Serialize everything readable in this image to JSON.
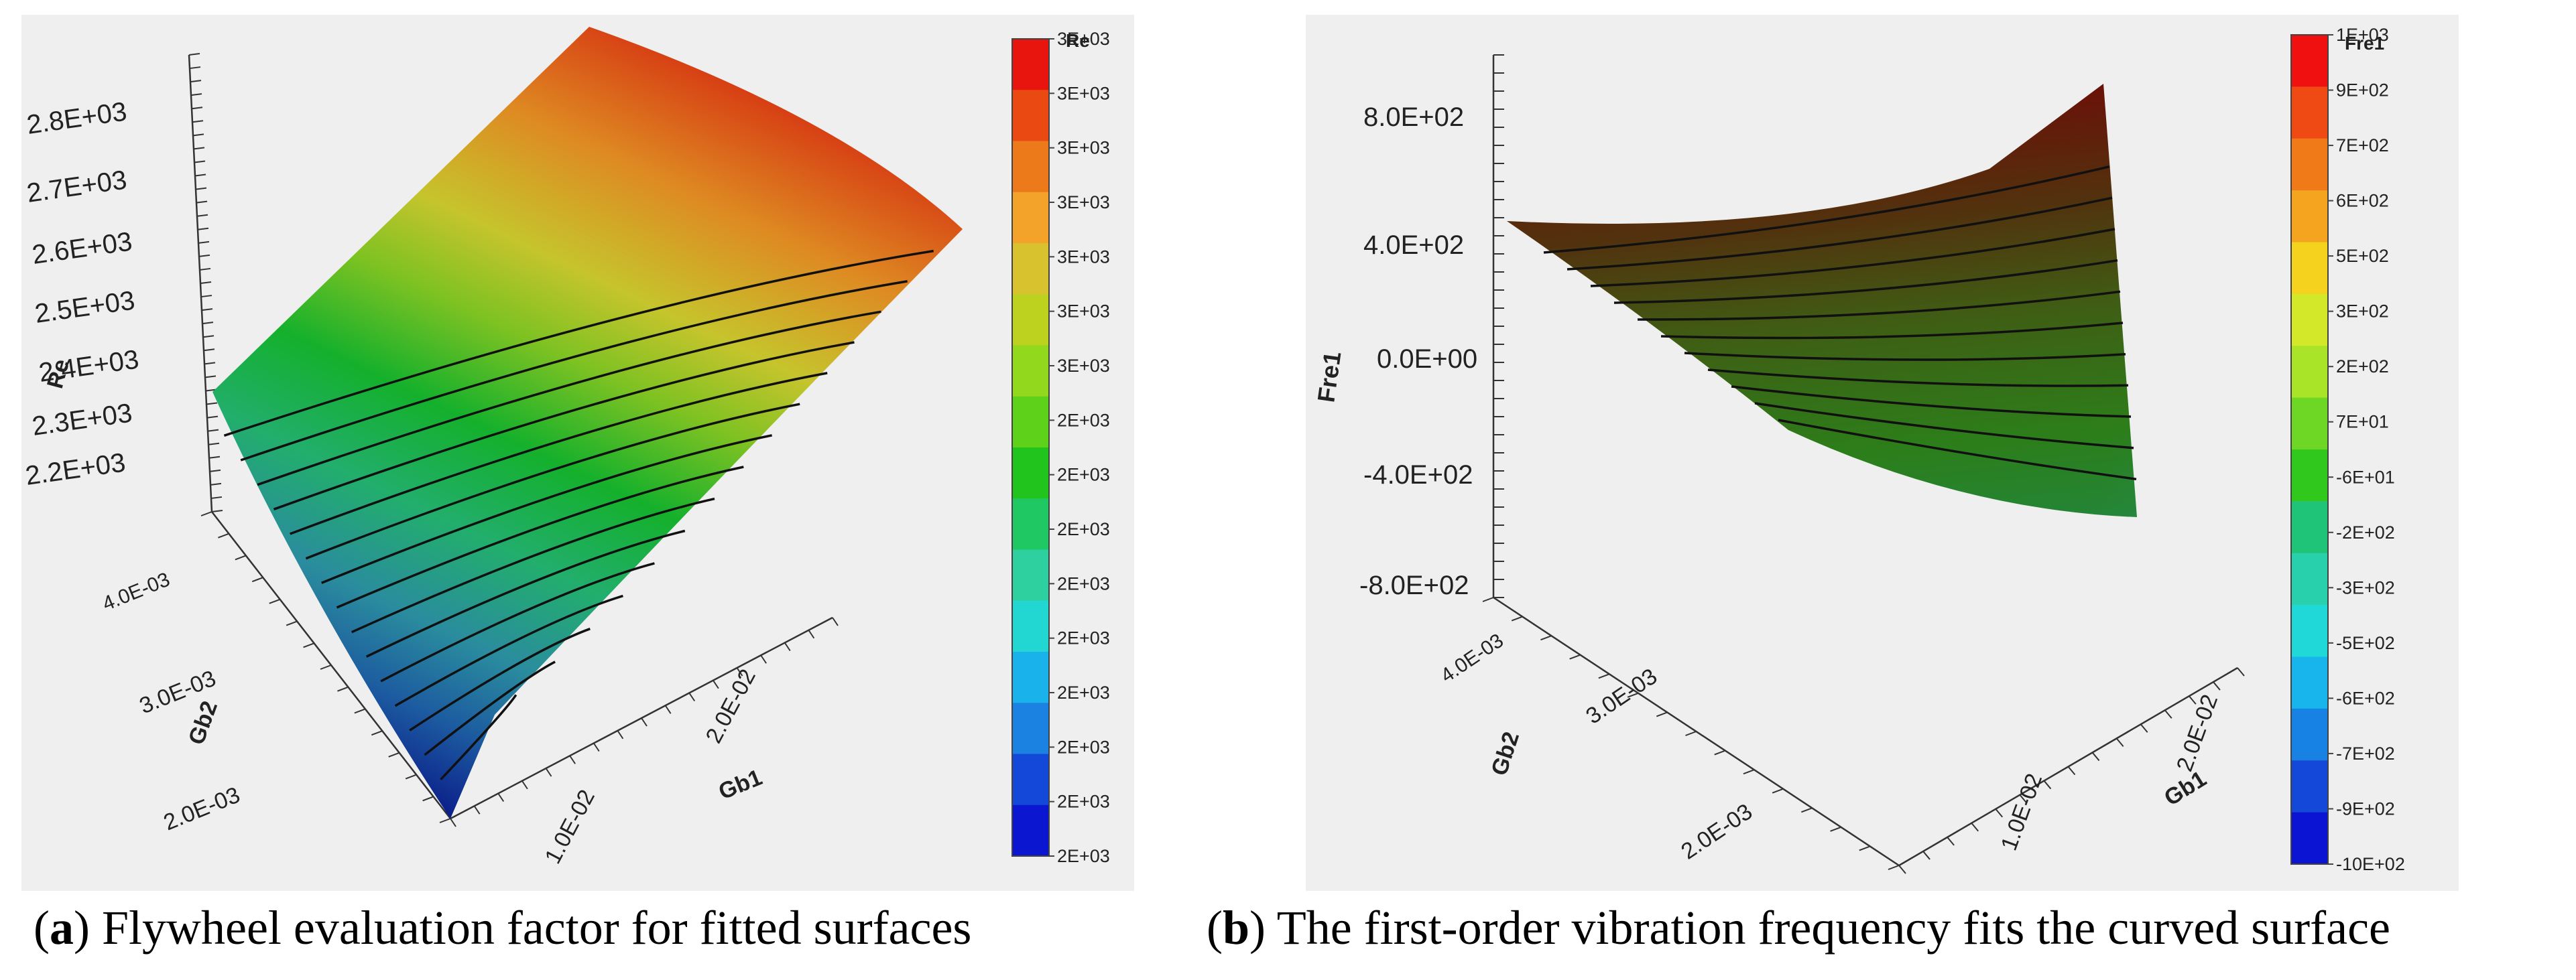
{
  "chart_data": [
    {
      "type": "surface",
      "panel_label": "a",
      "caption": "Flywheel evaluation factor for fitted surfaces",
      "title": "",
      "zlabel": "Re",
      "xlabel": "Gb1",
      "ylabel": "Gb2",
      "z_ticks": [
        "2.2E+03",
        "2.3E+03",
        "2.4E+03",
        "2.5E+03",
        "2.6E+03",
        "2.7E+03",
        "2.8E+03"
      ],
      "x_ticks": [
        "1.0E-02",
        "2.0E-02"
      ],
      "y_ticks": [
        "2.0E-03",
        "3.0E-03",
        "4.0E-03"
      ],
      "colorbar": {
        "title": "Re",
        "labels": [
          "3E+03",
          "3E+03",
          "3E+03",
          "3E+03",
          "3E+03",
          "3E+03",
          "3E+03",
          "2E+03",
          "2E+03",
          "2E+03",
          "2E+03",
          "2E+03",
          "2E+03",
          "2E+03",
          "2E+03",
          "2E+03"
        ],
        "colors": [
          "#e8140e",
          "#ea4a12",
          "#ec7a1a",
          "#f3a22a",
          "#d8c22e",
          "#bcd21e",
          "#92d81c",
          "#5ed21a",
          "#20c41c",
          "#20c864",
          "#2ed0a0",
          "#22d6d2",
          "#1ab2ea",
          "#1c82e2",
          "#1448d8",
          "#0a16d0"
        ]
      },
      "z_range": [
        2200,
        2800
      ],
      "contour_count": 15
    },
    {
      "type": "surface",
      "panel_label": "b",
      "caption": "The first-order vibration frequency fits the curved surface",
      "title": "",
      "zlabel": "Fre1",
      "xlabel": "Gb1",
      "ylabel": "Gb2",
      "z_ticks": [
        "-8.0E+02",
        "-4.0E+02",
        "0.0E+00",
        "4.0E+02",
        "8.0E+02"
      ],
      "x_ticks": [
        "1.0E-02",
        "2.0E-02"
      ],
      "y_ticks": [
        "2.0E-03",
        "3.0E-03",
        "4.0E-03"
      ],
      "colorbar": {
        "title": "Fre1",
        "labels": [
          "1E+03",
          "9E+02",
          "7E+02",
          "6E+02",
          "5E+02",
          "3E+02",
          "2E+02",
          "7E+01",
          "-6E+01",
          "-2E+02",
          "-3E+02",
          "-5E+02",
          "-6E+02",
          "-7E+02",
          "-9E+02",
          "-10E+02"
        ],
        "colors": [
          "#f01010",
          "#f04a14",
          "#f07a18",
          "#f4a41e",
          "#f4d21e",
          "#d4e82a",
          "#aae428",
          "#6ed624",
          "#30c81c",
          "#20c478",
          "#28d0ac",
          "#20d8d8",
          "#18b4ec",
          "#1882e4",
          "#1448d8",
          "#0a14d2"
        ]
      },
      "z_range": [
        -800,
        800
      ],
      "contour_count": 11
    }
  ]
}
